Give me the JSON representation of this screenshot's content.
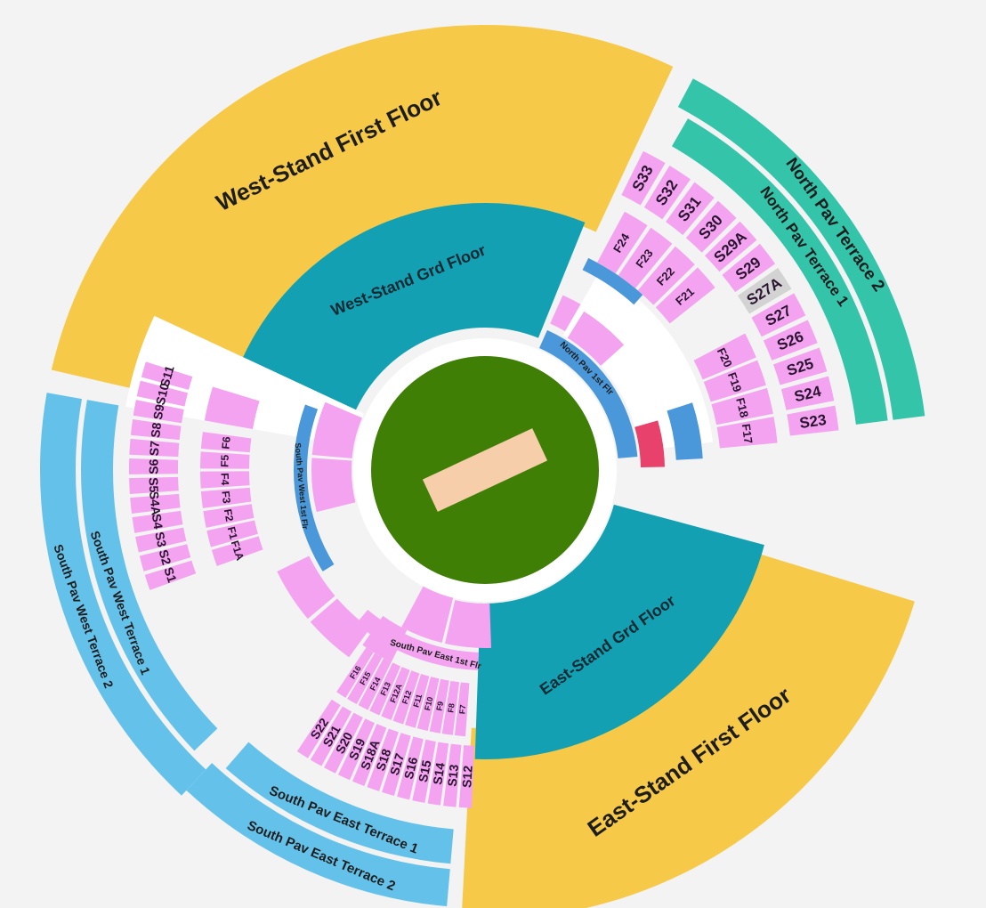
{
  "colors": {
    "background": "#f3f3f3",
    "west_east_first_floor": "#f7c948",
    "north_pav_terrace": "#33c4aa",
    "south_pav_terrace": "#64c2ea",
    "grd_floor": "#13a0b3",
    "pitch_field": "#3f7f06",
    "pitch_strip": "#f6cfaa",
    "block": "#f3a3ef",
    "block_highlight": "#e8416b",
    "block_unavailable": "#d3d3d3",
    "concourse": "#4a98d9"
  },
  "zones": {
    "west_first": "West-Stand First Floor",
    "east_first": "East-Stand First Floor",
    "west_grd": "West-Stand Grd Floor",
    "east_grd": "East-Stand Grd Floor",
    "north_t2": "North Pav Terrace 2",
    "north_t1": "North Pav Terrace 1",
    "north_1st": "North Pav 1st Flr",
    "south_east_t1": "South Pav East Terrace 1",
    "south_east_t2": "South Pav East Terrace 2",
    "south_west_t1": "South Pav West Terrace 1",
    "south_west_t2": "South Pav West Terrace 2",
    "south_west_1st": "South Pav West 1st Flr",
    "south_east_1st": "South Pav East 1st Flr"
  },
  "north_s_blocks": [
    "S33",
    "S32",
    "S31",
    "S30",
    "S29A",
    "S29",
    "S27A",
    "S27",
    "S26",
    "S25",
    "S24",
    "S23"
  ],
  "north_f_inner": [
    "F24",
    "F23",
    "F22",
    "F21"
  ],
  "north_f_east": [
    "F20",
    "F19",
    "F18",
    "F17"
  ],
  "west_s_blocks": [
    "S1",
    "S2",
    "S3",
    "S4",
    "S4A",
    "S5",
    "S6",
    "S7",
    "S8",
    "S9",
    "S10",
    "S11"
  ],
  "west_f_blocks": [
    "F1A",
    "F1",
    "F2",
    "F3",
    "F4",
    "F5",
    "F6"
  ],
  "south_s_blocks": [
    "S12",
    "S13",
    "S14",
    "S15",
    "S16",
    "S17",
    "S18",
    "S18A",
    "S19",
    "S20",
    "S21",
    "S22"
  ],
  "south_f_blocks": [
    "F7",
    "F8",
    "F9",
    "F10",
    "F11",
    "F12",
    "F12A",
    "F13",
    "F14",
    "F15",
    "F16"
  ]
}
